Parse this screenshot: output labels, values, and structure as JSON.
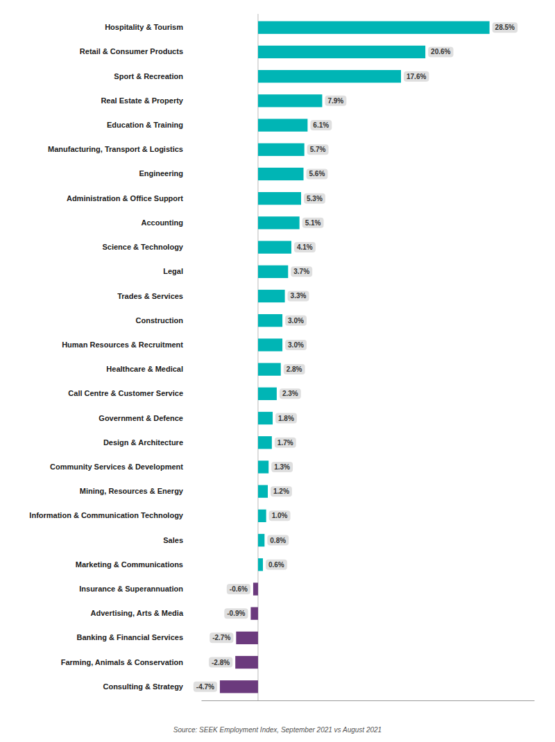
{
  "chart_data": {
    "type": "bar",
    "orientation": "horizontal",
    "categories": [
      "Hospitality & Tourism",
      "Retail & Consumer Products",
      "Sport & Recreation",
      "Real Estate & Property",
      "Education & Training",
      "Manufacturing, Transport & Logistics",
      "Engineering",
      "Administration & Office Support",
      "Accounting",
      "Science & Technology",
      "Legal",
      "Trades & Services",
      "Construction",
      "Human Resources & Recruitment",
      "Healthcare & Medical",
      "Call Centre & Customer Service",
      "Government & Defence",
      "Design & Architecture",
      "Community Services & Development",
      "Mining, Resources & Energy",
      "Information & Communication Technology",
      "Sales",
      "Marketing & Communications",
      "Insurance & Superannuation",
      "Advertising, Arts & Media",
      "Banking & Financial Services",
      "Farming, Animals & Conservation",
      "Consulting & Strategy"
    ],
    "values": [
      28.5,
      20.6,
      17.6,
      7.9,
      6.1,
      5.7,
      5.6,
      5.3,
      5.1,
      4.1,
      3.7,
      3.3,
      3.0,
      3.0,
      2.8,
      2.3,
      1.8,
      1.7,
      1.3,
      1.2,
      1.0,
      0.8,
      0.6,
      -0.6,
      -0.9,
      -2.7,
      -2.8,
      -4.7
    ],
    "value_labels": [
      "28.5%",
      "20.6%",
      "17.6%",
      "7.9%",
      "6.1%",
      "5.7%",
      "5.6%",
      "5.3%",
      "5.1%",
      "4.1%",
      "3.7%",
      "3.3%",
      "3.0%",
      "3.0%",
      "2.8%",
      "2.3%",
      "1.8%",
      "1.7%",
      "1.3%",
      "1.2%",
      "1.0%",
      "0.8%",
      "0.6%",
      "-0.6%",
      "-0.9%",
      "-2.7%",
      "-2.8%",
      "-4.7%"
    ],
    "colors": [
      "#00B5B5",
      "#00B5B5",
      "#00B5B5",
      "#00B5B5",
      "#00B5B5",
      "#00B5B5",
      "#00B5B5",
      "#00B5B5",
      "#00B5B5",
      "#00B5B5",
      "#00B5B5",
      "#00B5B5",
      "#00B5B5",
      "#00B5B5",
      "#00B5B5",
      "#00B5B5",
      "#00B5B5",
      "#00B5B5",
      "#00B5B5",
      "#00B5B5",
      "#00B5B5",
      "#00B5B5",
      "#00B5B5",
      "#6B3A7D",
      "#6B3A7D",
      "#6B3A7D",
      "#6B3A7D",
      "#6B3A7D"
    ],
    "xlim": [
      -7.0,
      34.0
    ],
    "data_labels": true,
    "tick_labels": "y",
    "annotations": [
      "Source: SEEK Employment Index, September 2021 vs August 2021"
    ]
  }
}
